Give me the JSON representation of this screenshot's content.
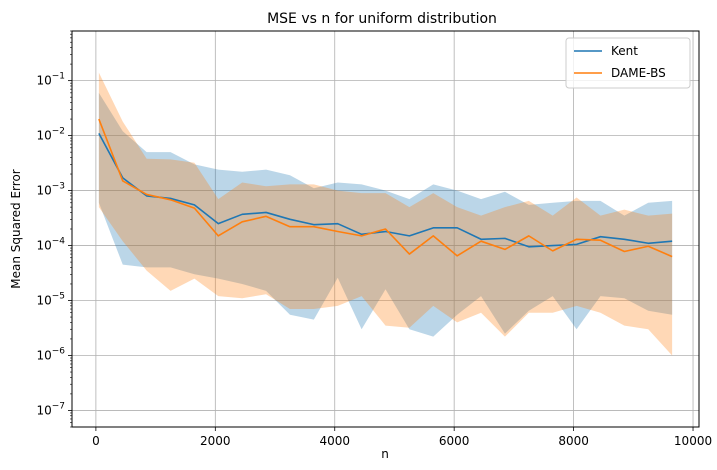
{
  "chart_data": {
    "type": "line",
    "title": "MSE vs n for uniform distribution",
    "xlabel": "n",
    "ylabel": "Mean Squared Error",
    "yscale": "log",
    "xlim": [
      -400,
      10100
    ],
    "ylim": [
      5e-08,
      0.8
    ],
    "xticks": [
      0,
      2000,
      4000,
      6000,
      8000,
      10000
    ],
    "xtick_labels": [
      "0",
      "2000",
      "4000",
      "6000",
      "8000",
      "10000"
    ],
    "yticks": [
      1e-07,
      1e-06,
      1e-05,
      0.0001,
      0.001,
      0.01,
      0.1
    ],
    "ytick_labels": [
      {
        "base": "10",
        "exp": "−7"
      },
      {
        "base": "10",
        "exp": "−6"
      },
      {
        "base": "10",
        "exp": "−5"
      },
      {
        "base": "10",
        "exp": "−4"
      },
      {
        "base": "10",
        "exp": "−3"
      },
      {
        "base": "10",
        "exp": "−2"
      },
      {
        "base": "10",
        "exp": "−1"
      }
    ],
    "grid": true,
    "legend_position": "top-right",
    "x": [
      50,
      450,
      850,
      1250,
      1650,
      2050,
      2450,
      2850,
      3250,
      3650,
      4050,
      4450,
      4850,
      5250,
      5650,
      6050,
      6450,
      6850,
      7250,
      7650,
      8050,
      8450,
      8850,
      9250,
      9650
    ],
    "series": [
      {
        "name": "Kent",
        "color": "#1f77b4",
        "values": [
          0.011,
          0.0017,
          0.0008,
          0.00072,
          0.00055,
          0.00025,
          0.00037,
          0.0004,
          0.0003,
          0.00024,
          0.00025,
          0.00016,
          0.00018,
          0.00015,
          0.00021,
          0.00021,
          0.00013,
          0.000135,
          9.5e-05,
          0.0001,
          0.000105,
          0.000145,
          0.00013,
          0.00011,
          0.00012
        ],
        "upper": [
          0.06,
          0.012,
          0.005,
          0.005,
          0.003,
          0.0024,
          0.0022,
          0.0024,
          0.0019,
          0.0011,
          0.0014,
          0.0013,
          0.001,
          0.0007,
          0.0013,
          0.001,
          0.0007,
          0.00095,
          0.00055,
          0.0006,
          0.00065,
          0.00065,
          0.00035,
          0.0006,
          0.00065
        ],
        "lower": [
          0.0006,
          4.5e-05,
          4e-05,
          4e-05,
          3e-05,
          2.5e-05,
          2e-05,
          1.5e-05,
          5.5e-06,
          4.5e-06,
          2.6e-05,
          3e-06,
          1.6e-05,
          3e-06,
          2.2e-06,
          5.5e-06,
          1.2e-05,
          2.5e-06,
          6.5e-06,
          1.2e-05,
          3e-06,
          1.2e-05,
          1.1e-05,
          6.5e-06,
          5.5e-06
        ]
      },
      {
        "name": "DAME-BS",
        "color": "#ff7f0e",
        "values": [
          0.02,
          0.0015,
          0.00085,
          0.00068,
          0.00048,
          0.00015,
          0.00027,
          0.00034,
          0.00022,
          0.00022,
          0.00018,
          0.00015,
          0.0002,
          7e-05,
          0.00015,
          6.5e-05,
          0.00012,
          8.5e-05,
          0.00015,
          8e-05,
          0.00013,
          0.000125,
          7.8e-05,
          9.7e-05,
          6.3e-05
        ],
        "upper": [
          0.14,
          0.018,
          0.0038,
          0.0037,
          0.0032,
          0.0007,
          0.0014,
          0.0012,
          0.0013,
          0.0013,
          0.001,
          0.0009,
          0.0009,
          0.0005,
          0.0009,
          0.0005,
          0.00035,
          0.0005,
          0.00065,
          0.00035,
          0.00075,
          0.00035,
          0.00045,
          0.00035,
          0.00038
        ],
        "lower": [
          0.0005,
          0.00012,
          3.5e-05,
          1.5e-05,
          2.5e-05,
          1.2e-05,
          1.1e-05,
          1.3e-05,
          7e-06,
          7e-06,
          8e-06,
          1.2e-05,
          3.5e-06,
          3.2e-06,
          8e-06,
          4e-06,
          6e-06,
          2.2e-06,
          6e-06,
          6e-06,
          8e-06,
          6e-06,
          3.5e-06,
          3e-06,
          1e-06
        ]
      }
    ]
  }
}
